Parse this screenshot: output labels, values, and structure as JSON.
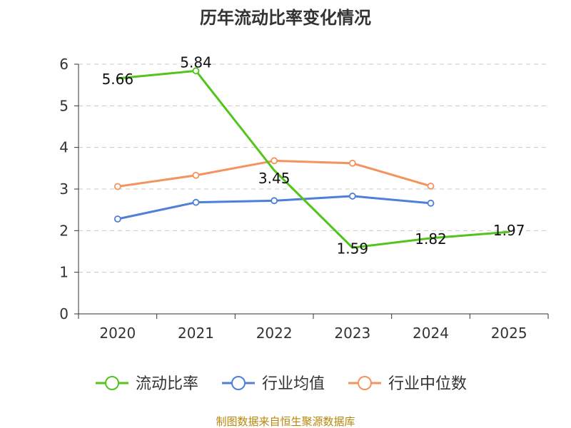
{
  "chart_data": {
    "type": "line",
    "title": "历年流动比率变化情况",
    "categories": [
      "2020",
      "2021",
      "2022",
      "2023",
      "2024",
      "2025"
    ],
    "ylim": [
      0,
      6
    ],
    "yticks": [
      0,
      1,
      2,
      3,
      4,
      5,
      6
    ],
    "grid": true,
    "legend": "bottom",
    "series": [
      {
        "name": "流动比率",
        "color": "#52c41a",
        "values": [
          5.66,
          5.84,
          3.45,
          1.59,
          1.82,
          1.97
        ],
        "show_labels": true,
        "markers_on": [
          1
        ]
      },
      {
        "name": "行业均值",
        "color": "#4e7fd9",
        "values": [
          2.28,
          2.68,
          2.72,
          2.83,
          2.66,
          null
        ],
        "show_labels": false,
        "markers_on": [
          0,
          1,
          2,
          3,
          4
        ]
      },
      {
        "name": "行业中位数",
        "color": "#f5935e",
        "values": [
          3.06,
          3.33,
          3.68,
          3.62,
          3.07,
          null
        ],
        "show_labels": false,
        "markers_on": [
          0,
          1,
          2,
          3,
          4
        ]
      }
    ]
  },
  "source": "制图数据来自恒生聚源数据库"
}
